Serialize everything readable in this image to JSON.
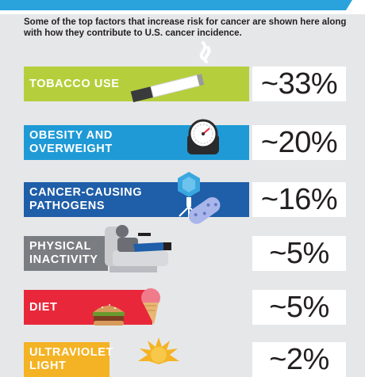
{
  "intro": "Some of the top factors that increase risk for cancer are shown here along with how they contribute to U.S. cancer incidence.",
  "chart_data": {
    "type": "bar",
    "title": "",
    "categories": [
      "TOBACCO USE",
      "OBESITY AND OVERWEIGHT",
      "CANCER-CAUSING PATHOGENS",
      "PHYSICAL INACTIVITY",
      "DIET",
      "ULTRAVIOLET LIGHT"
    ],
    "values": [
      33,
      20,
      16,
      5,
      5,
      2
    ],
    "value_labels": [
      "~33%",
      "~20%",
      "~16%",
      "~5%",
      "~5%",
      "~2%"
    ],
    "colors": [
      "#b5cf3c",
      "#1f9ad6",
      "#1f5ea8",
      "#7a7d82",
      "#e8283a",
      "#f4b324"
    ],
    "icons": [
      "cigarette-icon",
      "scale-icon",
      "pathogen-icon",
      "recliner-couch-potato-icon",
      "burger-ice-cream-icon",
      "sun-icon"
    ]
  },
  "rows": [
    {
      "label_lines": [
        "TOBACCO USE"
      ],
      "value": "~33%"
    },
    {
      "label_lines": [
        "OBESITY AND",
        "OVERWEIGHT"
      ],
      "value": "~20%"
    },
    {
      "label_lines": [
        "CANCER-CAUSING",
        "PATHOGENS"
      ],
      "value": "~16%"
    },
    {
      "label_lines": [
        "PHYSICAL",
        "INACTIVITY"
      ],
      "value": "~5%"
    },
    {
      "label_lines": [
        "DIET"
      ],
      "value": "~5%"
    },
    {
      "label_lines": [
        "ULTRAVIOLET",
        "LIGHT"
      ],
      "value": "~2%"
    }
  ]
}
